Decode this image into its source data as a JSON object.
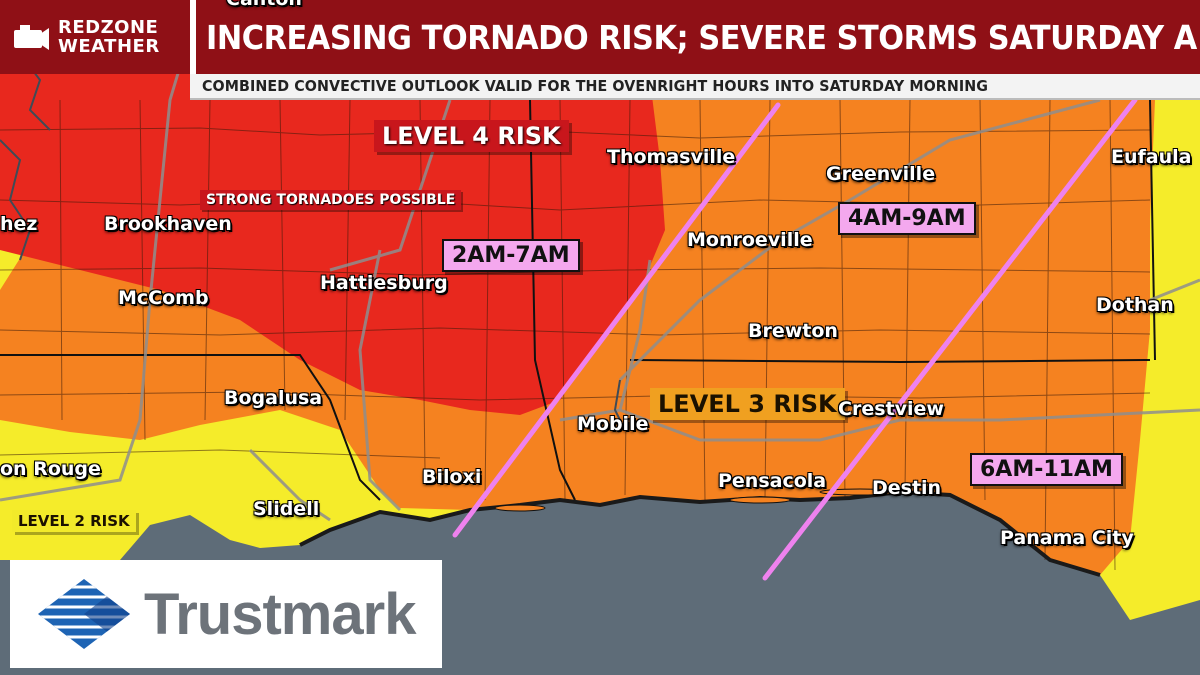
{
  "header": {
    "brand_line1": "REDZONE",
    "brand_line2": "WEATHER",
    "headline": "INCREASING TORNADO RISK; SEVERE STORMS SATURDAY A.M.",
    "subline": "COMBINED CONVECTIVE OUTLOOK VALID FOR THE OVENRIGHT HOURS INTO SATURDAY MORNING"
  },
  "risk_labels": {
    "level4": "LEVEL 4 RISK",
    "level3": "LEVEL 3 RISK",
    "level2": "LEVEL 2 RISK",
    "level4_note": "STRONG TORNADOES POSSIBLE"
  },
  "timing": {
    "line1": "2AM-7AM",
    "line2": "4AM-9AM",
    "line3": "6AM-11AM"
  },
  "cities": {
    "canton": "Canton",
    "natchez": "hez",
    "brookhaven": "Brookhaven",
    "mccomb": "McComb",
    "hattiesburg": "Hattiesburg",
    "thomasville": "Thomasville",
    "monroeville": "Monroeville",
    "greenville": "Greenville",
    "eufaula": "Eufaula",
    "dothan": "Dothan",
    "brewton": "Brewton",
    "bogalusa": "Bogalusa",
    "baton_rouge": "on Rouge",
    "slidell": "Slidell",
    "biloxi": "Biloxi",
    "mobile": "Mobile",
    "pensacola": "Pensacola",
    "crestview": "Crestview",
    "destin": "Destin",
    "panama_city": "Panama  City"
  },
  "sponsor": {
    "name": "Trustmark"
  },
  "colors": {
    "header_red": "#8f1016",
    "level4_red": "#e8281e",
    "level3_orange": "#f58220",
    "level2_yellow": "#f5ec2a",
    "gulf": "#5e6c78",
    "timing_line": "#ee82ee"
  }
}
